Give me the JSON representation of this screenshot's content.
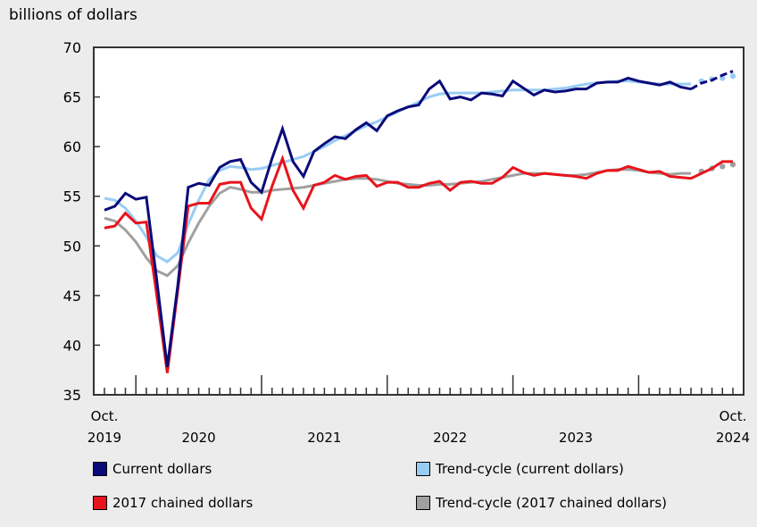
{
  "chart_data": {
    "type": "line",
    "ylabel": "billions of dollars",
    "ylim": [
      35,
      70
    ],
    "yticks": [
      35,
      40,
      45,
      50,
      55,
      60,
      65,
      70
    ],
    "x_start": "2019-10",
    "x_end": "2024-10",
    "x_labels": [
      {
        "month": "2019-10",
        "lines": [
          "Oct.",
          "2019"
        ]
      },
      {
        "month": "2020-07",
        "lines": [
          "",
          "2020"
        ]
      },
      {
        "month": "2021-07",
        "lines": [
          "",
          "2021"
        ]
      },
      {
        "month": "2022-07",
        "lines": [
          "",
          "2022"
        ]
      },
      {
        "month": "2023-07",
        "lines": [
          "",
          "2023"
        ]
      },
      {
        "month": "2024-10",
        "lines": [
          "Oct.",
          "2024"
        ]
      }
    ],
    "grid": false,
    "series": [
      {
        "name": "Current dollars",
        "color": "#0a0a7a",
        "style": "solid",
        "dashed_from": "2024-06",
        "values": [
          53.6,
          54.0,
          55.3,
          54.7,
          54.9,
          46.5,
          37.8,
          46.0,
          55.9,
          56.3,
          56.1,
          57.9,
          58.5,
          58.7,
          56.4,
          55.4,
          58.8,
          61.8,
          58.5,
          57.0,
          59.5,
          60.3,
          61.0,
          60.8,
          61.7,
          62.4,
          61.6,
          63.1,
          63.6,
          64.0,
          64.2,
          65.8,
          66.6,
          64.8,
          65.0,
          64.7,
          65.4,
          65.3,
          65.1,
          66.6,
          65.9,
          65.2,
          65.7,
          65.5,
          65.6,
          65.8,
          65.8,
          66.4,
          66.5,
          66.5,
          66.9,
          66.6,
          66.4,
          66.2,
          66.5,
          66.0,
          65.8,
          66.4,
          66.7,
          67.2,
          67.6
        ]
      },
      {
        "name": "2017 chained dollars",
        "color": "#e8141c",
        "style": "solid",
        "values": [
          51.8,
          52.0,
          53.3,
          52.3,
          52.4,
          45.0,
          37.2,
          45.5,
          54.0,
          54.3,
          54.3,
          56.2,
          56.4,
          56.4,
          53.8,
          52.7,
          56.0,
          58.8,
          55.6,
          53.8,
          56.1,
          56.4,
          57.1,
          56.7,
          57.0,
          57.1,
          56.0,
          56.4,
          56.4,
          55.9,
          55.9,
          56.3,
          56.5,
          55.6,
          56.4,
          56.5,
          56.3,
          56.3,
          56.9,
          57.9,
          57.4,
          57.1,
          57.3,
          57.2,
          57.1,
          57.0,
          56.8,
          57.3,
          57.6,
          57.6,
          58.0,
          57.7,
          57.4,
          57.5,
          57.0,
          56.9,
          56.8,
          57.3,
          57.8,
          58.5,
          58.5
        ]
      },
      {
        "name": "Trend-cycle (current dollars)",
        "color": "#99ccf5",
        "style": "solid",
        "dotted_from": "2024-07",
        "values": [
          54.8,
          54.6,
          53.8,
          52.5,
          50.9,
          49.0,
          48.4,
          49.3,
          52.2,
          54.6,
          56.7,
          57.6,
          58.0,
          57.9,
          57.7,
          57.8,
          58.1,
          58.4,
          58.7,
          59.0,
          59.5,
          60.0,
          60.6,
          61.1,
          61.6,
          62.1,
          62.5,
          63.0,
          63.5,
          64.0,
          64.5,
          65.0,
          65.3,
          65.4,
          65.4,
          65.4,
          65.4,
          65.5,
          65.6,
          65.7,
          65.7,
          65.7,
          65.7,
          65.8,
          65.9,
          66.1,
          66.3,
          66.4,
          66.5,
          66.6,
          66.6,
          66.5,
          66.4,
          66.3,
          66.3,
          66.3,
          66.3,
          66.6,
          66.8,
          66.9,
          67.1
        ]
      },
      {
        "name": "Trend-cycle (2017 chained dollars)",
        "color": "#a0a0a0",
        "style": "solid",
        "dotted_from": "2024-07",
        "values": [
          52.8,
          52.5,
          51.6,
          50.4,
          48.8,
          47.5,
          47.0,
          48.0,
          50.3,
          52.3,
          54.0,
          55.3,
          55.9,
          55.7,
          55.4,
          55.4,
          55.6,
          55.7,
          55.8,
          55.9,
          56.1,
          56.3,
          56.5,
          56.7,
          56.8,
          56.8,
          56.7,
          56.5,
          56.3,
          56.2,
          56.1,
          56.1,
          56.2,
          56.2,
          56.3,
          56.4,
          56.5,
          56.7,
          56.9,
          57.1,
          57.3,
          57.3,
          57.3,
          57.2,
          57.1,
          57.1,
          57.2,
          57.4,
          57.6,
          57.7,
          57.7,
          57.6,
          57.4,
          57.3,
          57.2,
          57.3,
          57.3,
          57.5,
          57.8,
          58.0,
          58.2
        ]
      }
    ],
    "legend_position": "bottom"
  }
}
